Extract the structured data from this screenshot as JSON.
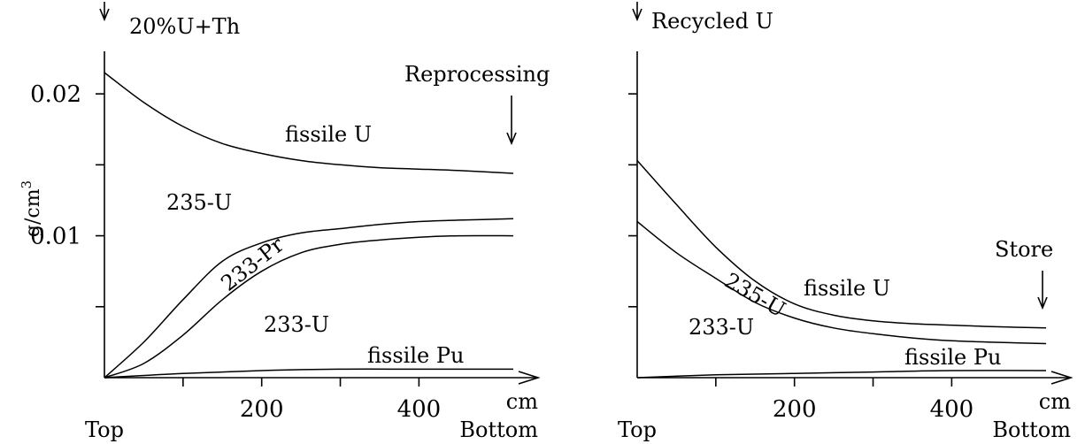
{
  "chart_data": [
    {
      "type": "line",
      "ylabel": "g/cm",
      "ylabel_sup": "3",
      "xlabel": "cm",
      "x_start_label": "Top",
      "x_end_label": "Bottom",
      "xlim": [
        0,
        520
      ],
      "ylim": [
        0,
        0.023
      ],
      "x_ticks": [
        100,
        200,
        300,
        400
      ],
      "x_tick_labels": [
        "200",
        "400"
      ],
      "x_tick_label_values": [
        200,
        400
      ],
      "y_ticks": [
        0.005,
        0.01,
        0.015,
        0.02
      ],
      "y_tick_labels": [
        "0.02",
        "0.01"
      ],
      "y_tick_label_values": [
        0.02,
        0.01
      ],
      "input_label": "20%U+Th",
      "output_label": "Reprocessing",
      "series": [
        {
          "name": "fissile U",
          "x": [
            0,
            50,
            100,
            150,
            200,
            250,
            300,
            350,
            400,
            450,
            520
          ],
          "values": [
            0.0215,
            0.0194,
            0.0177,
            0.0165,
            0.0158,
            0.0153,
            0.015,
            0.0148,
            0.0147,
            0.0146,
            0.0144
          ]
        },
        {
          "name": "233-Pr",
          "x": [
            0,
            50,
            100,
            150,
            200,
            250,
            300,
            350,
            400,
            450,
            520
          ],
          "values": [
            0,
            0.0025,
            0.0055,
            0.0082,
            0.0095,
            0.0102,
            0.0105,
            0.0108,
            0.011,
            0.0111,
            0.0112
          ]
        },
        {
          "name": "233-U",
          "x": [
            0,
            50,
            100,
            150,
            200,
            250,
            300,
            350,
            400,
            450,
            520
          ],
          "values": [
            0,
            0.001,
            0.003,
            0.0055,
            0.0075,
            0.0088,
            0.0094,
            0.0097,
            0.0099,
            0.01,
            0.01
          ]
        },
        {
          "name": "fissile Pu",
          "x": [
            0,
            100,
            200,
            300,
            400,
            520
          ],
          "values": [
            0,
            0.0003,
            0.0005,
            0.0006,
            0.0006,
            0.0006
          ]
        }
      ],
      "region_labels": [
        "235-U"
      ]
    },
    {
      "type": "line",
      "xlabel": "cm",
      "x_start_label": "Top",
      "x_end_label": "Bottom",
      "xlim": [
        0,
        520
      ],
      "ylim": [
        0,
        0.023
      ],
      "x_ticks": [
        100,
        200,
        300,
        400
      ],
      "x_tick_labels": [
        "200",
        "400"
      ],
      "x_tick_label_values": [
        200,
        400
      ],
      "y_ticks": [
        0.005,
        0.01,
        0.015,
        0.02
      ],
      "input_label": "Recycled U",
      "output_label": "Store",
      "series": [
        {
          "name": "fissile U",
          "x": [
            0,
            50,
            100,
            150,
            200,
            250,
            300,
            350,
            400,
            450,
            520
          ],
          "values": [
            0.0153,
            0.0122,
            0.0092,
            0.0068,
            0.0052,
            0.0044,
            0.004,
            0.0038,
            0.0037,
            0.0036,
            0.0035
          ]
        },
        {
          "name": "235-U",
          "x": [
            0,
            50,
            100,
            150,
            200,
            250,
            300,
            350,
            400,
            450,
            520
          ],
          "values": [
            0.011,
            0.0088,
            0.007,
            0.0053,
            0.0042,
            0.0035,
            0.0031,
            0.0028,
            0.0026,
            0.0025,
            0.0024
          ]
        },
        {
          "name": "fissile Pu",
          "x": [
            0,
            100,
            200,
            300,
            400,
            520
          ],
          "values": [
            0,
            0.0002,
            0.0003,
            0.0004,
            0.0005,
            0.0005
          ]
        }
      ],
      "region_labels": [
        "233-U"
      ]
    }
  ]
}
